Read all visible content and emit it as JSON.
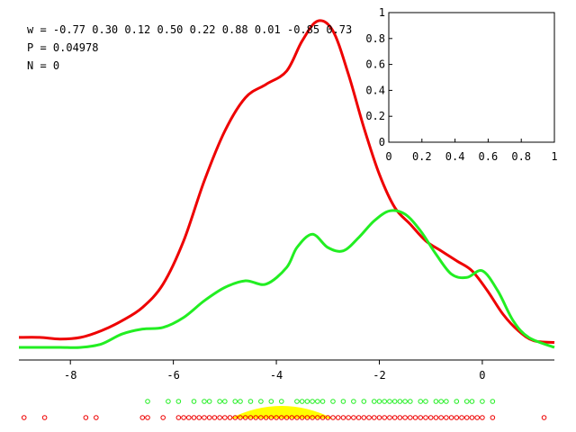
{
  "info": {
    "w_line": "w = -0.77 0.30 0.12 0.50 0.22 0.88 0.01 -0.85 0.73",
    "p_line": "P = 0.04978",
    "n_line": "N = 0"
  },
  "colors": {
    "red": "#ee0000",
    "green": "#22ee22",
    "yellow": "#ffff00",
    "axis": "#000000"
  },
  "chart_data": [
    {
      "type": "line",
      "xlim": [
        -9,
        1.4
      ],
      "x_ticks": [
        "-8",
        "-6",
        "-4",
        "-2",
        "0"
      ],
      "x_tick_values": [
        -8,
        -6,
        -4,
        -2,
        0
      ],
      "ylim": [
        0,
        1
      ],
      "series": [
        {
          "color": "red",
          "x": [
            -9.0,
            -8.6,
            -8.2,
            -7.8,
            -7.4,
            -7.0,
            -6.6,
            -6.2,
            -5.8,
            -5.4,
            -5.0,
            -4.6,
            -4.2,
            -3.8,
            -3.5,
            -3.2,
            -2.9,
            -2.6,
            -2.3,
            -2.0,
            -1.7,
            -1.4,
            -1.1,
            -0.8,
            -0.5,
            -0.2,
            0.1,
            0.4,
            0.7,
            1.0,
            1.4
          ],
          "y": [
            0.03,
            0.03,
            0.025,
            0.03,
            0.05,
            0.08,
            0.12,
            0.19,
            0.32,
            0.5,
            0.65,
            0.75,
            0.79,
            0.83,
            0.92,
            0.98,
            0.95,
            0.82,
            0.66,
            0.52,
            0.42,
            0.37,
            0.32,
            0.29,
            0.26,
            0.23,
            0.17,
            0.1,
            0.05,
            0.02,
            0.015
          ]
        },
        {
          "color": "green",
          "x": [
            -9.0,
            -8.6,
            -8.2,
            -7.8,
            -7.4,
            -7.0,
            -6.6,
            -6.2,
            -5.8,
            -5.4,
            -5.0,
            -4.6,
            -4.2,
            -3.8,
            -3.6,
            -3.3,
            -3.0,
            -2.7,
            -2.4,
            -2.1,
            -1.8,
            -1.5,
            -1.2,
            -0.9,
            -0.6,
            -0.3,
            0.0,
            0.3,
            0.6,
            0.9,
            1.4
          ],
          "y": [
            0,
            0,
            0,
            0,
            0.01,
            0.04,
            0.055,
            0.06,
            0.09,
            0.14,
            0.18,
            0.2,
            0.19,
            0.24,
            0.3,
            0.34,
            0.3,
            0.29,
            0.33,
            0.38,
            0.41,
            0.4,
            0.35,
            0.28,
            0.22,
            0.21,
            0.23,
            0.17,
            0.08,
            0.03,
            0.0
          ]
        }
      ],
      "ticks": {
        "green_x": [
          -6.5,
          -6.1,
          -5.9,
          -5.6,
          -5.4,
          -5.3,
          -5.1,
          -5.0,
          -4.8,
          -4.7,
          -4.5,
          -4.3,
          -4.1,
          -3.9,
          -3.6,
          -3.5,
          -3.4,
          -3.3,
          -3.2,
          -3.1,
          -2.9,
          -2.7,
          -2.5,
          -2.3,
          -2.1,
          -2.0,
          -1.9,
          -1.8,
          -1.7,
          -1.6,
          -1.5,
          -1.4,
          -1.2,
          -1.1,
          -0.9,
          -0.8,
          -0.7,
          -0.5,
          -0.3,
          -0.2,
          0.0,
          0.2
        ],
        "red_x": [
          -8.9,
          -8.5,
          -7.7,
          -7.5,
          -6.6,
          -6.5,
          -6.2,
          -5.9,
          -5.8,
          -5.7,
          -5.6,
          -5.5,
          -5.4,
          -5.3,
          -5.2,
          -5.1,
          -5.0,
          -4.9,
          -4.8,
          -4.7,
          -4.6,
          -4.5,
          -4.4,
          -4.3,
          -4.2,
          -4.1,
          -4.0,
          -3.9,
          -3.8,
          -3.7,
          -3.6,
          -3.5,
          -3.4,
          -3.3,
          -3.2,
          -3.1,
          -3.0,
          -2.9,
          -2.8,
          -2.7,
          -2.6,
          -2.5,
          -2.4,
          -2.3,
          -2.2,
          -2.1,
          -2.0,
          -1.9,
          -1.8,
          -1.7,
          -1.6,
          -1.5,
          -1.4,
          -1.3,
          -1.2,
          -1.1,
          -1.0,
          -0.9,
          -0.8,
          -0.7,
          -0.6,
          -0.5,
          -0.4,
          -0.3,
          -0.2,
          -0.1,
          0.0,
          0.2,
          1.2
        ]
      },
      "yellow_band_x": [
        -4.9,
        -2.9
      ]
    },
    {
      "type": "scatter",
      "xlim": [
        0,
        1
      ],
      "ylim": [
        0,
        1
      ],
      "x_ticks": [
        "0",
        "0.2",
        "0.4",
        "0.6",
        "0.8",
        "1"
      ],
      "x_tick_values": [
        0,
        0.2,
        0.4,
        0.6,
        0.8,
        1
      ],
      "y_ticks": [
        "0",
        "0.2",
        "0.4",
        "0.6",
        "0.8",
        "1"
      ],
      "y_tick_values": [
        0,
        0.2,
        0.4,
        0.6,
        0.8,
        1
      ]
    }
  ]
}
